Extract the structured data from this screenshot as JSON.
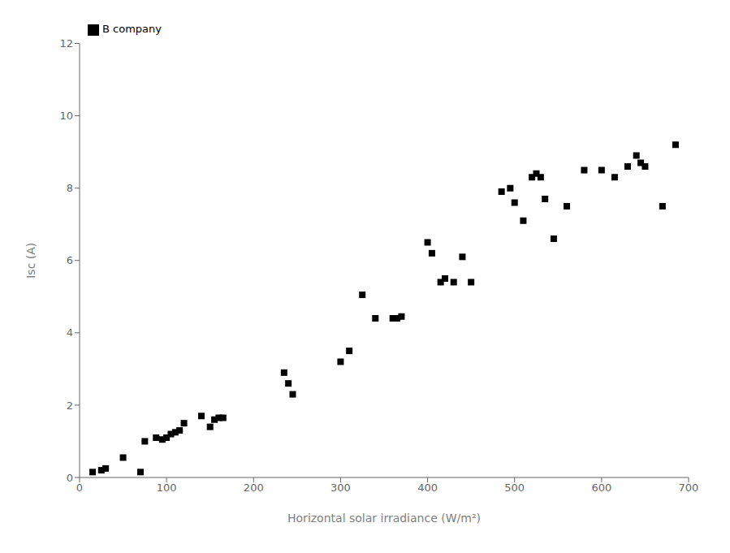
{
  "chart_data": {
    "type": "scatter",
    "xlabel": "Horizontal solar irradiance (W/m²)",
    "ylabel": "Isc (A)",
    "x": [
      15,
      25,
      30,
      50,
      70,
      75,
      88,
      95,
      100,
      105,
      110,
      115,
      120,
      140,
      150,
      155,
      160,
      165,
      235,
      240,
      245,
      300,
      310,
      325,
      340,
      360,
      365,
      370,
      400,
      405,
      415,
      420,
      430,
      440,
      450,
      485,
      495,
      500,
      510,
      520,
      525,
      530,
      535,
      545,
      560,
      580,
      600,
      615,
      630,
      640,
      645,
      650,
      670,
      685
    ],
    "series": [
      {
        "name": "B company",
        "color": "#000000",
        "marker": "square",
        "values": [
          0.15,
          0.2,
          0.25,
          0.55,
          0.15,
          1.0,
          1.1,
          1.05,
          1.1,
          1.2,
          1.25,
          1.3,
          1.5,
          1.7,
          1.4,
          1.6,
          1.65,
          1.65,
          2.9,
          2.6,
          2.3,
          3.2,
          3.5,
          5.05,
          4.4,
          4.4,
          4.4,
          4.45,
          6.5,
          6.2,
          5.4,
          5.5,
          5.4,
          6.1,
          5.4,
          7.9,
          8.0,
          7.6,
          7.1,
          8.3,
          8.4,
          8.3,
          7.7,
          6.6,
          7.5,
          8.5,
          8.5,
          8.3,
          8.6,
          8.9,
          8.7,
          8.6,
          7.5,
          9.2
        ]
      }
    ],
    "xlim": [
      0,
      700
    ],
    "ylim": [
      0,
      12
    ],
    "xticks": [
      0,
      100,
      200,
      300,
      400,
      500,
      600,
      700
    ],
    "yticks": [
      0,
      2,
      4,
      6,
      8,
      10,
      12
    ],
    "legend": "upper left",
    "grid": false
  }
}
